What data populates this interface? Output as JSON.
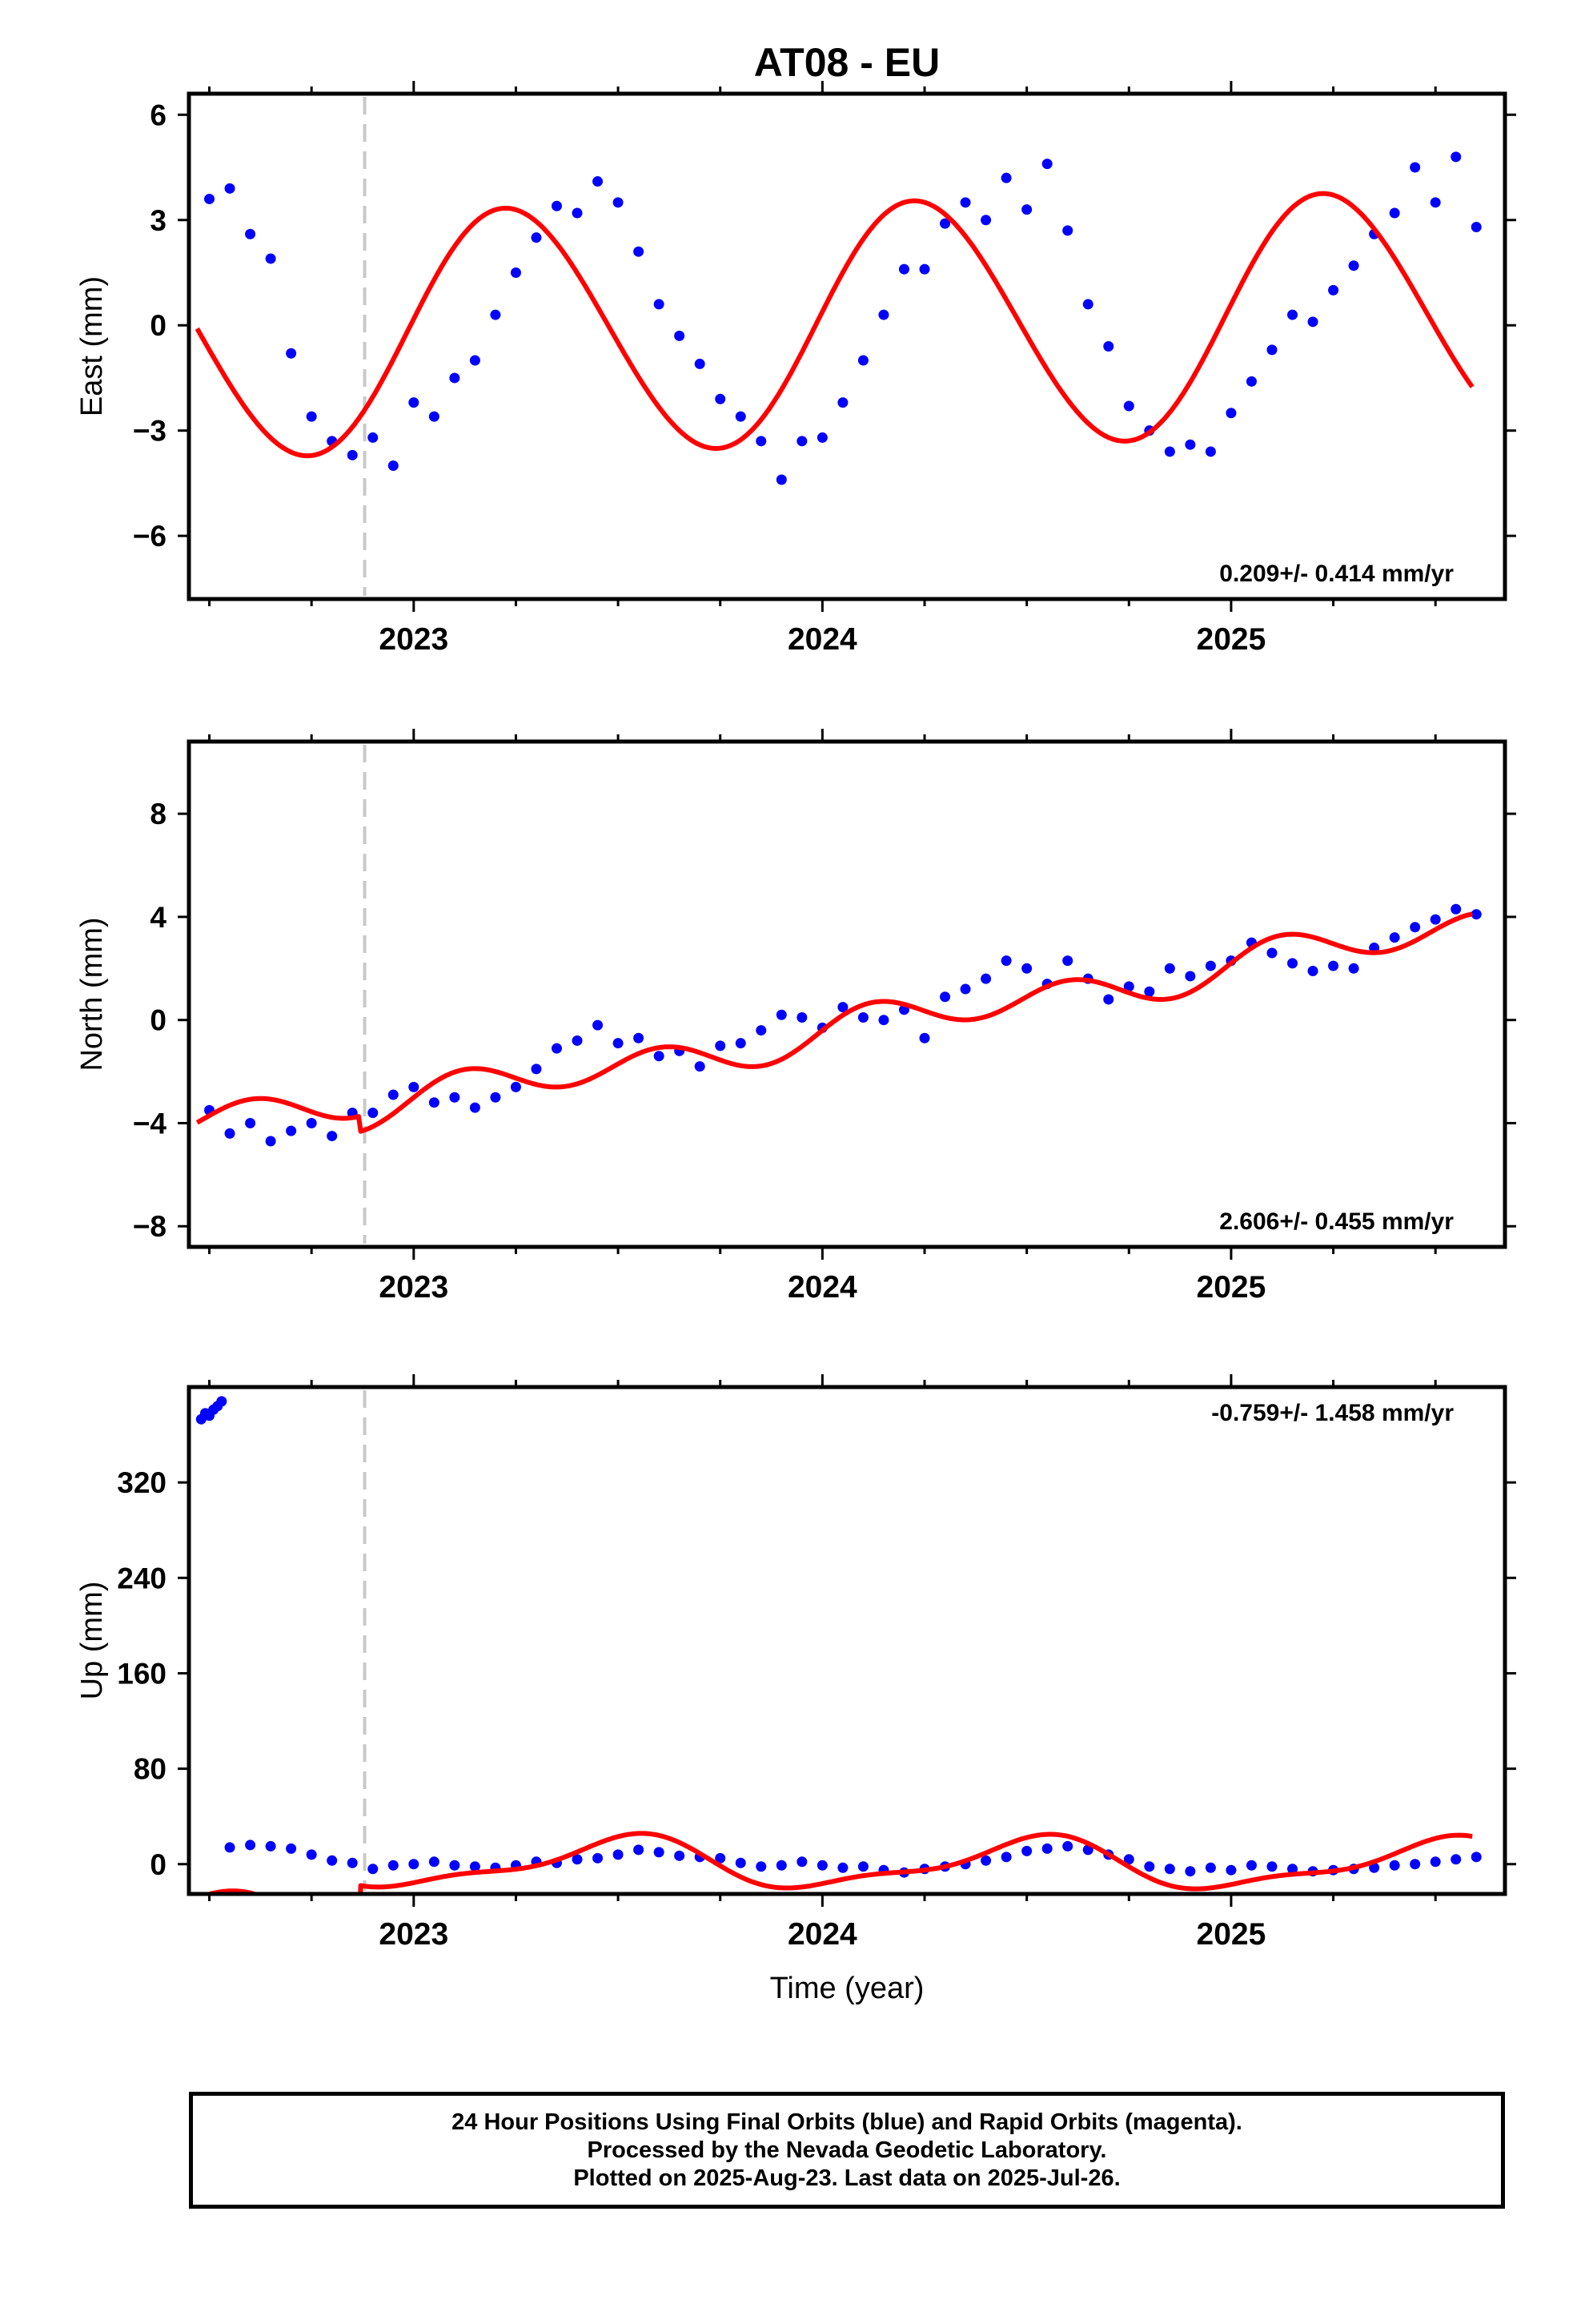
{
  "title": "AT08 - EU",
  "colors": {
    "points": "#0000ff",
    "fit": "#ff0000",
    "event": "#c8c8c8",
    "axis": "#000000"
  },
  "chart_data": [
    {
      "type": "scatter",
      "ylabel": "East (mm)",
      "xlim": [
        2022.45,
        2025.67
      ],
      "ylim": [
        -7.8,
        6.6
      ],
      "yticks": [
        -6,
        -3,
        0,
        3,
        6
      ],
      "ytick_labels": [
        "−6",
        "−3",
        "0",
        "3",
        "6"
      ],
      "xticks": [
        2023,
        2024,
        2025
      ],
      "xtick_labels": [
        "2023",
        "2024",
        "2025"
      ],
      "event_line": 2022.88,
      "rate_label": "0.209+/- 0.414 mm/yr",
      "rate_position": "bottom-right",
      "series": [
        {
          "kind": "points",
          "x": [
            2022.5,
            2022.55,
            2022.6,
            2022.65,
            2022.7,
            2022.75,
            2022.8,
            2022.85,
            2022.9,
            2022.95,
            2023.0,
            2023.05,
            2023.1,
            2023.15,
            2023.2,
            2023.25,
            2023.3,
            2023.35,
            2023.4,
            2023.45,
            2023.5,
            2023.55,
            2023.6,
            2023.65,
            2023.7,
            2023.75,
            2023.8,
            2023.85,
            2023.9,
            2023.95,
            2024.0,
            2024.05,
            2024.1,
            2024.15,
            2024.2,
            2024.25,
            2024.3,
            2024.35,
            2024.4,
            2024.45,
            2024.5,
            2024.55,
            2024.6,
            2024.65,
            2024.7,
            2024.75,
            2024.8,
            2024.85,
            2024.9,
            2024.95,
            2025.0,
            2025.05,
            2025.1,
            2025.15,
            2025.2,
            2025.25,
            2025.3,
            2025.35,
            2025.4,
            2025.45,
            2025.5,
            2025.55,
            2025.6
          ],
          "y": [
            3.6,
            3.9,
            2.6,
            1.9,
            -0.8,
            -2.6,
            -3.3,
            -3.7,
            -3.2,
            -4.0,
            -2.2,
            -2.6,
            -1.5,
            -1.0,
            0.3,
            1.5,
            2.5,
            3.4,
            3.2,
            4.1,
            3.5,
            2.1,
            0.6,
            -0.3,
            -1.1,
            -2.1,
            -2.6,
            -3.3,
            -4.4,
            -3.3,
            -3.2,
            -2.2,
            -1.0,
            0.3,
            1.6,
            1.6,
            2.9,
            3.5,
            3.0,
            4.2,
            3.3,
            4.6,
            2.7,
            0.6,
            -0.6,
            -2.3,
            -3.0,
            -3.6,
            -3.4,
            -3.6,
            -2.5,
            -1.6,
            -0.7,
            0.3,
            0.1,
            1.0,
            1.7,
            2.6,
            3.2,
            4.5,
            3.5,
            4.8,
            2.8
          ]
        },
        {
          "kind": "fit",
          "model": "seasonal",
          "offset": 0.0,
          "rate": 0.209,
          "epoch": 2024.0,
          "annual": [
            3.45,
            0.39
          ],
          "semiannual": [
            0.1,
            0.0
          ],
          "steps": []
        }
      ]
    },
    {
      "type": "scatter",
      "ylabel": "North (mm)",
      "xlim": [
        2022.45,
        2025.67
      ],
      "ylim": [
        -8.8,
        10.8
      ],
      "yticks": [
        -8,
        -4,
        0,
        4,
        8
      ],
      "ytick_labels": [
        "−8",
        "−4",
        "0",
        "4",
        "8"
      ],
      "xticks": [
        2023,
        2024,
        2025
      ],
      "xtick_labels": [
        "2023",
        "2024",
        "2025"
      ],
      "event_line": 2022.88,
      "rate_label": "2.606+/- 0.455 mm/yr",
      "rate_position": "bottom-right",
      "series": [
        {
          "kind": "points",
          "x": [
            2022.5,
            2022.55,
            2022.6,
            2022.65,
            2022.7,
            2022.75,
            2022.8,
            2022.85,
            2022.9,
            2022.95,
            2023.0,
            2023.05,
            2023.1,
            2023.15,
            2023.2,
            2023.25,
            2023.3,
            2023.35,
            2023.4,
            2023.45,
            2023.5,
            2023.55,
            2023.6,
            2023.65,
            2023.7,
            2023.75,
            2023.8,
            2023.85,
            2023.9,
            2023.95,
            2024.0,
            2024.05,
            2024.1,
            2024.15,
            2024.2,
            2024.25,
            2024.3,
            2024.35,
            2024.4,
            2024.45,
            2024.5,
            2024.55,
            2024.6,
            2024.65,
            2024.7,
            2024.75,
            2024.8,
            2024.85,
            2024.9,
            2024.95,
            2025.0,
            2025.05,
            2025.1,
            2025.15,
            2025.2,
            2025.25,
            2025.3,
            2025.35,
            2025.4,
            2025.45,
            2025.5,
            2025.55,
            2025.6
          ],
          "y": [
            -3.5,
            -4.4,
            -4.0,
            -4.7,
            -4.3,
            -4.0,
            -4.5,
            -3.6,
            -3.6,
            -2.9,
            -2.6,
            -3.2,
            -3.0,
            -3.4,
            -3.0,
            -2.6,
            -1.9,
            -1.1,
            -0.8,
            -0.2,
            -0.9,
            -0.7,
            -1.4,
            -1.2,
            -1.8,
            -1.0,
            -0.9,
            -0.4,
            0.2,
            0.1,
            -0.3,
            0.5,
            0.1,
            0.0,
            0.4,
            -0.7,
            0.9,
            1.2,
            1.6,
            2.3,
            2.0,
            1.4,
            2.3,
            1.6,
            0.8,
            1.3,
            1.1,
            2.0,
            1.7,
            2.1,
            2.3,
            3.0,
            2.6,
            2.2,
            1.9,
            2.1,
            2.0,
            2.8,
            3.2,
            3.6,
            3.9,
            4.3,
            4.1
          ]
        },
        {
          "kind": "fit",
          "model": "seasonal",
          "offset": -0.5,
          "rate": 2.606,
          "epoch": 2024.0,
          "annual": [
            0.3,
            0.0
          ],
          "semiannual": [
            0.65,
            0.1
          ],
          "steps": [
            [
              2022.87,
              0.6
            ]
          ]
        }
      ]
    },
    {
      "type": "scatter",
      "ylabel": "Up (mm)",
      "xlabel": "Time (year)",
      "xlim": [
        2022.45,
        2025.67
      ],
      "ylim": [
        -25,
        400
      ],
      "yticks": [
        0,
        80,
        160,
        240,
        320
      ],
      "ytick_labels": [
        "0",
        "80",
        "160",
        "240",
        "320"
      ],
      "xticks": [
        2023,
        2024,
        2025
      ],
      "xtick_labels": [
        "2023",
        "2024",
        "2025"
      ],
      "event_line": 2022.88,
      "rate_label": "-0.759+/- 1.458 mm/yr",
      "rate_position": "top-right",
      "series": [
        {
          "kind": "points",
          "x": [
            2022.48,
            2022.49,
            2022.5,
            2022.51,
            2022.52,
            2022.53,
            2022.55,
            2022.6,
            2022.65,
            2022.7,
            2022.75,
            2022.8,
            2022.85,
            2022.9,
            2022.95,
            2023.0,
            2023.05,
            2023.1,
            2023.15,
            2023.2,
            2023.25,
            2023.3,
            2023.35,
            2023.4,
            2023.45,
            2023.5,
            2023.55,
            2023.6,
            2023.65,
            2023.7,
            2023.75,
            2023.8,
            2023.85,
            2023.9,
            2023.95,
            2024.0,
            2024.05,
            2024.1,
            2024.15,
            2024.2,
            2024.25,
            2024.3,
            2024.35,
            2024.4,
            2024.45,
            2024.5,
            2024.55,
            2024.6,
            2024.65,
            2024.7,
            2024.75,
            2024.8,
            2024.85,
            2024.9,
            2024.95,
            2025.0,
            2025.05,
            2025.1,
            2025.15,
            2025.2,
            2025.25,
            2025.3,
            2025.35,
            2025.4,
            2025.45,
            2025.5,
            2025.55,
            2025.6
          ],
          "y": [
            373,
            378,
            376,
            381,
            384,
            388,
            14,
            16,
            15,
            13,
            8,
            3,
            1,
            -4,
            -1,
            0,
            2,
            -1,
            -2,
            -3,
            -1,
            2,
            1,
            4,
            5,
            8,
            12,
            10,
            7,
            6,
            5,
            1,
            -2,
            -1,
            2,
            -1,
            -3,
            -2,
            -5,
            -7,
            -4,
            -2,
            0,
            3,
            6,
            11,
            13,
            15,
            12,
            8,
            4,
            -2,
            -4,
            -6,
            -3,
            -5,
            -1,
            -2,
            -4,
            -6,
            -5,
            -4,
            -3,
            -1,
            0,
            2,
            4,
            6
          ]
        },
        {
          "kind": "fit",
          "model": "seasonal",
          "offset": 0.0,
          "rate": -0.759,
          "epoch": 2024.0,
          "annual": [
            -1.6,
            -19.5
          ],
          "semiannual": [
            6.4,
            3.2
          ],
          "steps": [
            [
              2022.87,
              -49
            ]
          ]
        }
      ]
    }
  ],
  "footer": {
    "line1": "24 Hour Positions Using Final Orbits (blue) and Rapid Orbits (magenta).",
    "line2": "Processed by the Nevada Geodetic Laboratory.",
    "line3": "Plotted on 2025-Aug-23. Last data on 2025-Jul-26."
  }
}
